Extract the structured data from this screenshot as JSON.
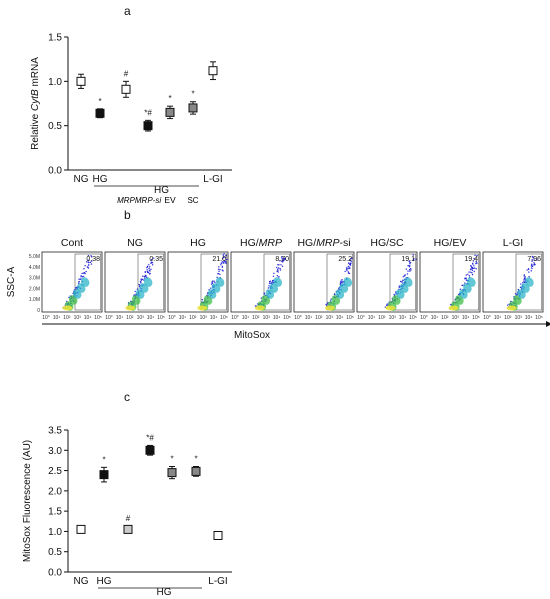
{
  "panels": {
    "a": "a",
    "b": "b",
    "c": "c"
  },
  "chart_data": [
    {
      "type": "scatter",
      "ylabel_prefix": "Relative ",
      "ylabel_gene": "CytB",
      "ylabel_suffix": " mRNA",
      "ylim": [
        0.0,
        1.5
      ],
      "yticks": [
        "0.0",
        "0.5",
        "1.0",
        "1.5"
      ],
      "xticks": [
        "NG",
        "HG",
        "",
        "",
        "",
        "",
        "L-GI"
      ],
      "group_label": "HG",
      "sublabels": [
        "MRP",
        "MRP-si",
        "EV",
        "SC"
      ],
      "points": [
        {
          "name": "NG",
          "value": 1.0,
          "err": 0.08,
          "fill": "#ffffff",
          "sig": ""
        },
        {
          "name": "HG",
          "value": 0.64,
          "err": 0.05,
          "fill": "#111111",
          "sig": "*"
        },
        {
          "name": "HG/MRP",
          "value": 0.91,
          "err": 0.09,
          "fill": "#ffffff",
          "sig": "#"
        },
        {
          "name": "HG/MRP-si",
          "value": 0.5,
          "err": 0.06,
          "fill": "#111111",
          "sig": "*#"
        },
        {
          "name": "HG/EV",
          "value": 0.65,
          "err": 0.07,
          "fill": "#888888",
          "sig": "*"
        },
        {
          "name": "HG/SC",
          "value": 0.7,
          "err": 0.07,
          "fill": "#888888",
          "sig": "*"
        },
        {
          "name": "L-GI",
          "value": 1.12,
          "err": 0.1,
          "fill": "#ffffff",
          "sig": ""
        }
      ]
    },
    {
      "type": "heatmap",
      "ylabel": "SSC-A",
      "xlabel": "MitoSox",
      "ytick_labels": [
        "5.0M",
        "4.0M",
        "3.0M",
        "2.0M",
        "1.0M",
        "0"
      ],
      "xtick_labels": [
        "10°",
        "10¹",
        "10²",
        "10³",
        "10⁴",
        "10⁵"
      ],
      "plots": [
        {
          "title": "Cont",
          "title_it": "",
          "title_suffix": "",
          "percent": "0.38"
        },
        {
          "title": "NG",
          "title_it": "",
          "title_suffix": "",
          "percent": "0.35"
        },
        {
          "title": "HG",
          "title_it": "",
          "title_suffix": "",
          "percent": "21.0"
        },
        {
          "title": "HG/",
          "title_it": "MRP",
          "title_suffix": "",
          "percent": "8.70"
        },
        {
          "title": "HG/",
          "title_it": "MRP",
          "title_suffix": "-si",
          "percent": "25.2"
        },
        {
          "title": "HG/SC",
          "title_it": "",
          "title_suffix": "",
          "percent": "19.1"
        },
        {
          "title": "HG/EV",
          "title_it": "",
          "title_suffix": "",
          "percent": "19.4"
        },
        {
          "title": "L-GI",
          "title_it": "",
          "title_suffix": "",
          "percent": "7.96"
        }
      ]
    },
    {
      "type": "scatter",
      "ylabel": "MitoSox Fluorescence (AU)",
      "ylim": [
        0.0,
        3.5
      ],
      "yticks": [
        "0.0",
        "0.5",
        "1.0",
        "1.5",
        "2.0",
        "2.5",
        "3.0",
        "3.5"
      ],
      "xticks": [
        "NG",
        "HG",
        "",
        "",
        "",
        "",
        "L-GI"
      ],
      "group_label": "HG",
      "sublabels": [
        "MRP",
        "MRP-si",
        "EV",
        "SC"
      ],
      "points": [
        {
          "name": "NG",
          "value": 1.05,
          "err": 0.0,
          "fill": "#ffffff",
          "sig": ""
        },
        {
          "name": "HG",
          "value": 2.4,
          "err": 0.18,
          "fill": "#111111",
          "sig": "*"
        },
        {
          "name": "HG/MRP",
          "value": 1.05,
          "err": 0.08,
          "fill": "#cccccc",
          "sig": "#"
        },
        {
          "name": "HG/MRP-si",
          "value": 3.0,
          "err": 0.12,
          "fill": "#111111",
          "sig": "*#"
        },
        {
          "name": "HG/EV",
          "value": 2.45,
          "err": 0.15,
          "fill": "#888888",
          "sig": "*"
        },
        {
          "name": "HG/SC",
          "value": 2.48,
          "err": 0.12,
          "fill": "#888888",
          "sig": "*"
        },
        {
          "name": "L-GI",
          "value": 0.9,
          "err": 0.08,
          "fill": "#ffffff",
          "sig": ""
        }
      ]
    }
  ]
}
